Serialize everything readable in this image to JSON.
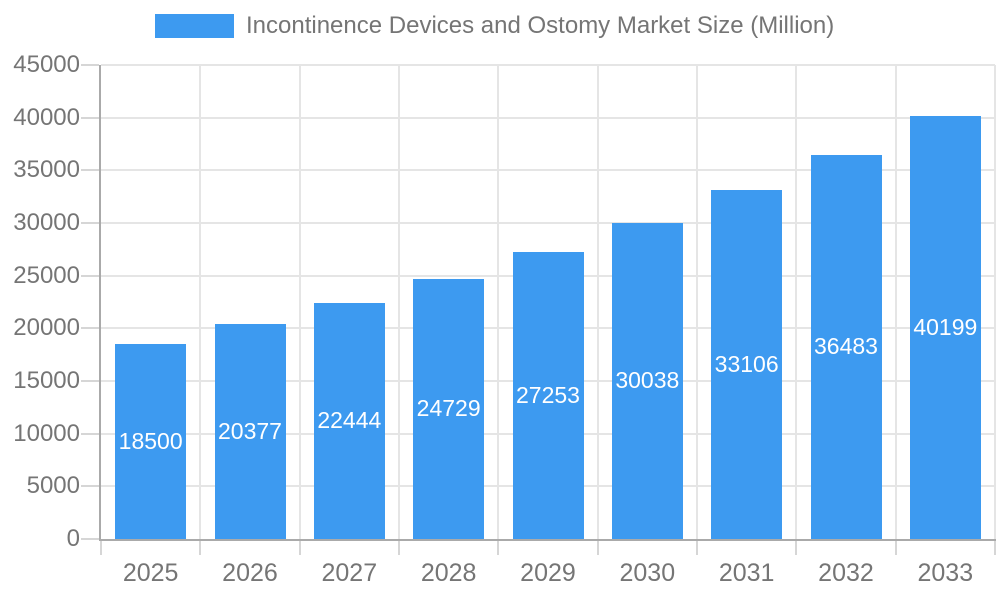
{
  "legend": {
    "label": "Incontinence Devices and Ostomy Market Size (Million)"
  },
  "colors": {
    "bar": "#3D9AF0",
    "axis": "#aaaaaa",
    "grid": "#e5e5e5",
    "tick": "#d6d6d6",
    "label": "#757575",
    "bar_label": "#ffffff"
  },
  "chart_data": {
    "type": "bar",
    "title": "Incontinence Devices and Ostomy Market Size (Million)",
    "categories": [
      "2025",
      "2026",
      "2027",
      "2028",
      "2029",
      "2030",
      "2031",
      "2032",
      "2033"
    ],
    "values": [
      18500,
      20377,
      22444,
      24729,
      27253,
      30038,
      33106,
      36483,
      40199
    ],
    "xlabel": "",
    "ylabel": "",
    "ylim": [
      0,
      45000
    ],
    "y_tick_step": 5000,
    "y_tick_labels": [
      "0",
      "5000",
      "10000",
      "15000",
      "20000",
      "25000",
      "30000",
      "35000",
      "40000",
      "45000"
    ],
    "grid": true,
    "legend_position": "top",
    "value_labels": "inside-center"
  }
}
